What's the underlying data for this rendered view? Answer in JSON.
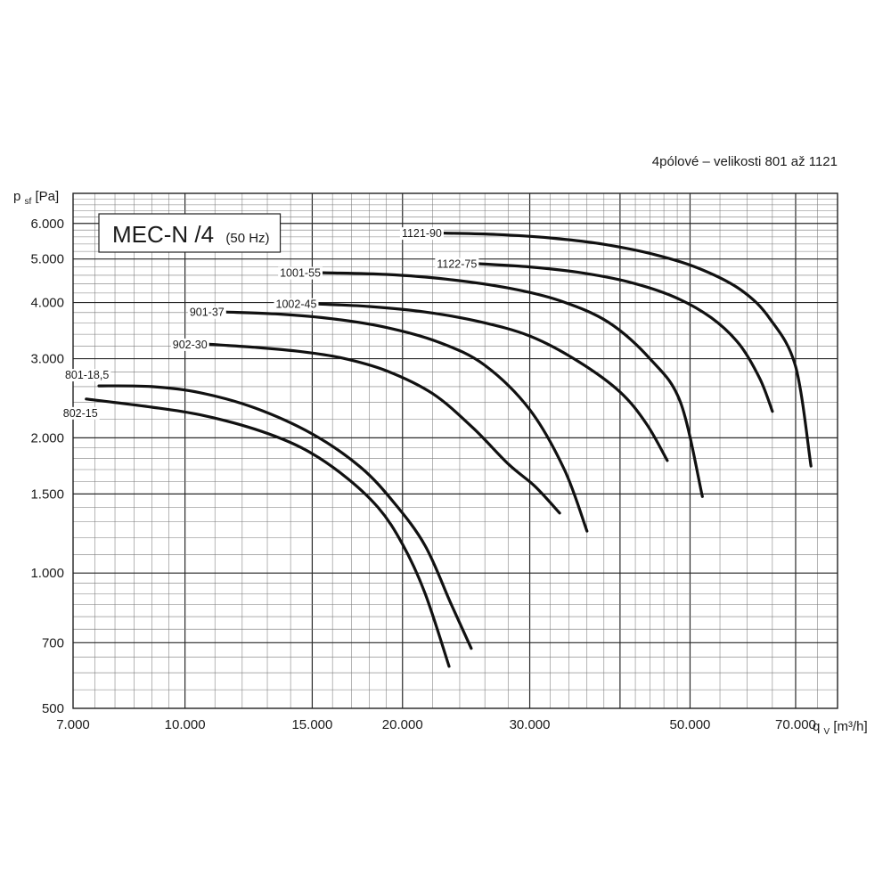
{
  "chart_data": {
    "type": "line",
    "title": "MEC-N /4",
    "title_suffix": "(50 Hz)",
    "subtitle": "4pólové – velikosti 801 až 1121",
    "ylabel": {
      "main": "p",
      "sub": "sf",
      "unit": " [Pa]"
    },
    "xlabel": {
      "main": "q",
      "sub": "V",
      "unit": " [m³/h]"
    },
    "x_scale": "log",
    "y_scale": "log",
    "xlim": [
      7000,
      80000
    ],
    "ylim": [
      500,
      7000
    ],
    "grid": true,
    "x_ticks": [
      {
        "value": 7000,
        "label": "7.000"
      },
      {
        "value": 10000,
        "label": "10.000"
      },
      {
        "value": 15000,
        "label": "15.000"
      },
      {
        "value": 20000,
        "label": "20.000"
      },
      {
        "value": 30000,
        "label": "30.000"
      },
      {
        "value": 50000,
        "label": "50.000"
      },
      {
        "value": 70000,
        "label": "70.000"
      }
    ],
    "y_ticks": [
      {
        "value": 500,
        "label": "500"
      },
      {
        "value": 700,
        "label": "700"
      },
      {
        "value": 1000,
        "label": "1.000"
      },
      {
        "value": 1500,
        "label": "1.500"
      },
      {
        "value": 2000,
        "label": "2.000"
      },
      {
        "value": 3000,
        "label": "3.000"
      },
      {
        "value": 4000,
        "label": "4.000"
      },
      {
        "value": 5000,
        "label": "5.000"
      },
      {
        "value": 6000,
        "label": "6.000"
      }
    ],
    "series": [
      {
        "name": "801-18,5",
        "label_side": "above",
        "x": [
          7600,
          9000,
          10500,
          12500,
          15000,
          17500,
          19500,
          21500,
          23300,
          24900
        ],
        "y": [
          2610,
          2600,
          2520,
          2330,
          2040,
          1720,
          1430,
          1150,
          860,
          680
        ]
      },
      {
        "name": "802-15",
        "label_side": "below",
        "x": [
          7300,
          9000,
          10500,
          12500,
          14500,
          16500,
          18500,
          20000,
          21500,
          23200
        ],
        "y": [
          2440,
          2340,
          2250,
          2090,
          1900,
          1660,
          1400,
          1160,
          900,
          620
        ]
      },
      {
        "name": "902-30",
        "label_side": "left",
        "x": [
          10800,
          12500,
          14500,
          16500,
          19000,
          22000,
          25000,
          28000,
          30500,
          33000
        ],
        "y": [
          3230,
          3180,
          3110,
          3010,
          2820,
          2510,
          2110,
          1750,
          1560,
          1360
        ]
      },
      {
        "name": "901-37",
        "label_side": "left",
        "x": [
          11400,
          13500,
          16000,
          19000,
          22500,
          26000,
          30000,
          33500,
          36000
        ],
        "y": [
          3810,
          3770,
          3680,
          3520,
          3260,
          2900,
          2310,
          1700,
          1240
        ]
      },
      {
        "name": "1002-45",
        "label_side": "left",
        "x": [
          15300,
          18000,
          21500,
          25500,
          30000,
          35000,
          40000,
          43500,
          46500
        ],
        "y": [
          3970,
          3920,
          3810,
          3630,
          3370,
          2960,
          2530,
          2150,
          1780
        ]
      },
      {
        "name": "1001-55",
        "label_side": "left",
        "x": [
          15500,
          19000,
          23000,
          28000,
          33000,
          38500,
          44000,
          48500,
          52000
        ],
        "y": [
          4660,
          4620,
          4510,
          4310,
          4040,
          3620,
          3000,
          2400,
          1480
        ]
      },
      {
        "name": "1122-75",
        "label_side": "left",
        "x": [
          25500,
          30000,
          35000,
          41000,
          47500,
          53500,
          58500,
          62500,
          65000
        ],
        "y": [
          4880,
          4800,
          4670,
          4450,
          4120,
          3700,
          3230,
          2700,
          2290
        ]
      },
      {
        "name": "1121-90",
        "label_side": "left",
        "x": [
          22800,
          27000,
          32000,
          38000,
          45000,
          52000,
          59000,
          64500,
          70000,
          73500
        ],
        "y": [
          5710,
          5670,
          5570,
          5390,
          5100,
          4730,
          4250,
          3680,
          2880,
          1730
        ]
      }
    ]
  }
}
